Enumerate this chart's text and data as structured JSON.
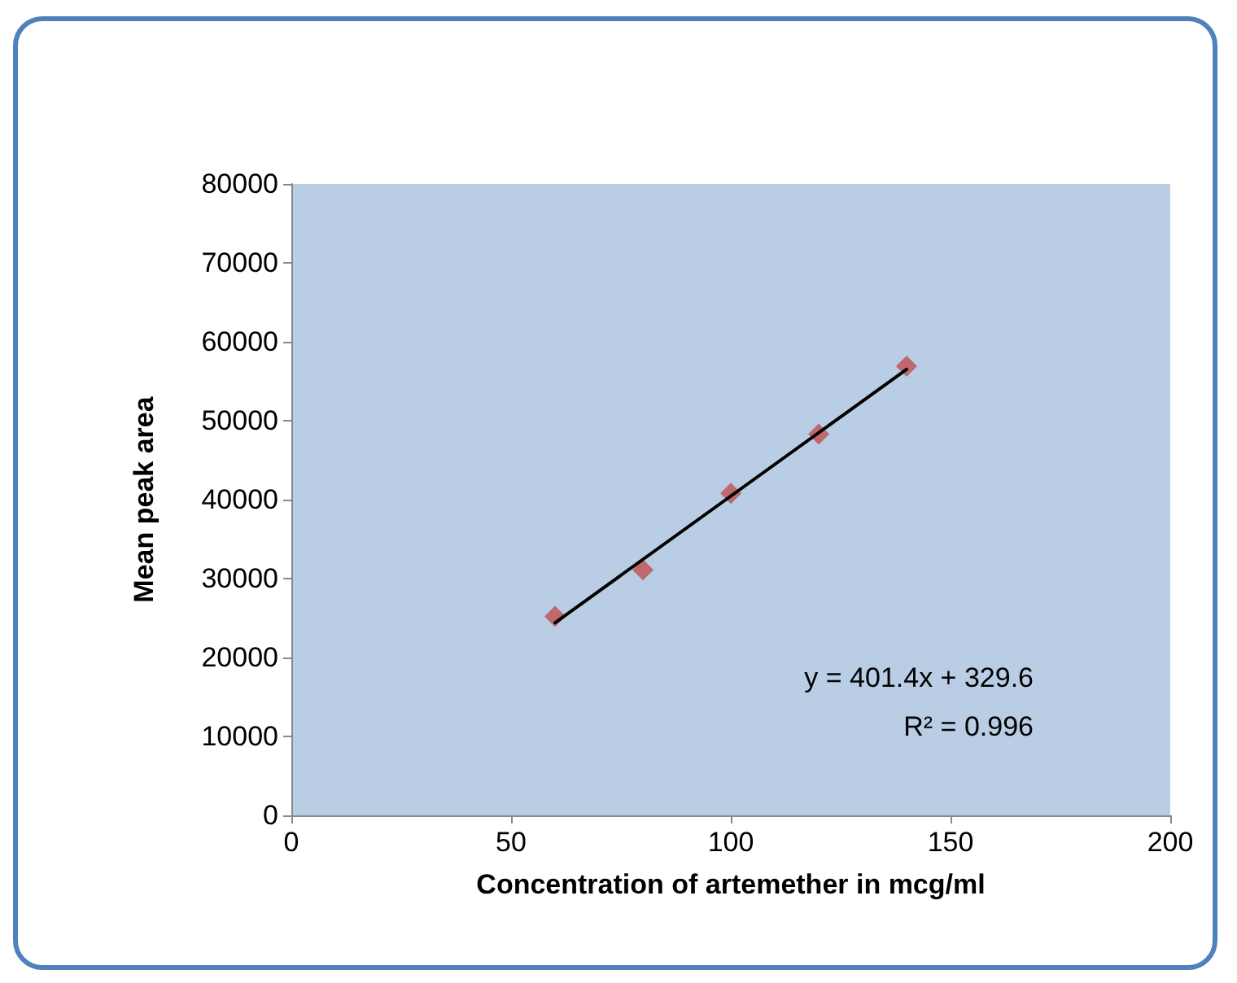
{
  "chart_data": {
    "type": "scatter",
    "xlabel": "Concentration of artemether in mcg/ml",
    "ylabel": "Mean peak area",
    "x": [
      60,
      80,
      100,
      120,
      140
    ],
    "series": [
      {
        "color": "#c0504d",
        "marker": "diamond",
        "values": [
          25200,
          31100,
          40800,
          48300,
          56900
        ]
      },
      {
        "type": "line",
        "color": "#000000",
        "marker": "none",
        "line_style": "solid",
        "x": [
          60,
          140
        ],
        "values": [
          24400,
          56500
        ]
      }
    ],
    "xlim": [
      0,
      200
    ],
    "xticks": [
      0,
      50,
      100,
      150,
      200
    ],
    "ylim": [
      0,
      80000
    ],
    "yticks": [
      0,
      10000,
      20000,
      30000,
      40000,
      50000,
      60000,
      70000,
      80000
    ],
    "grid": false,
    "annotations": [
      "y = 401.4x + 329.6",
      "R² = 0.996"
    ]
  }
}
